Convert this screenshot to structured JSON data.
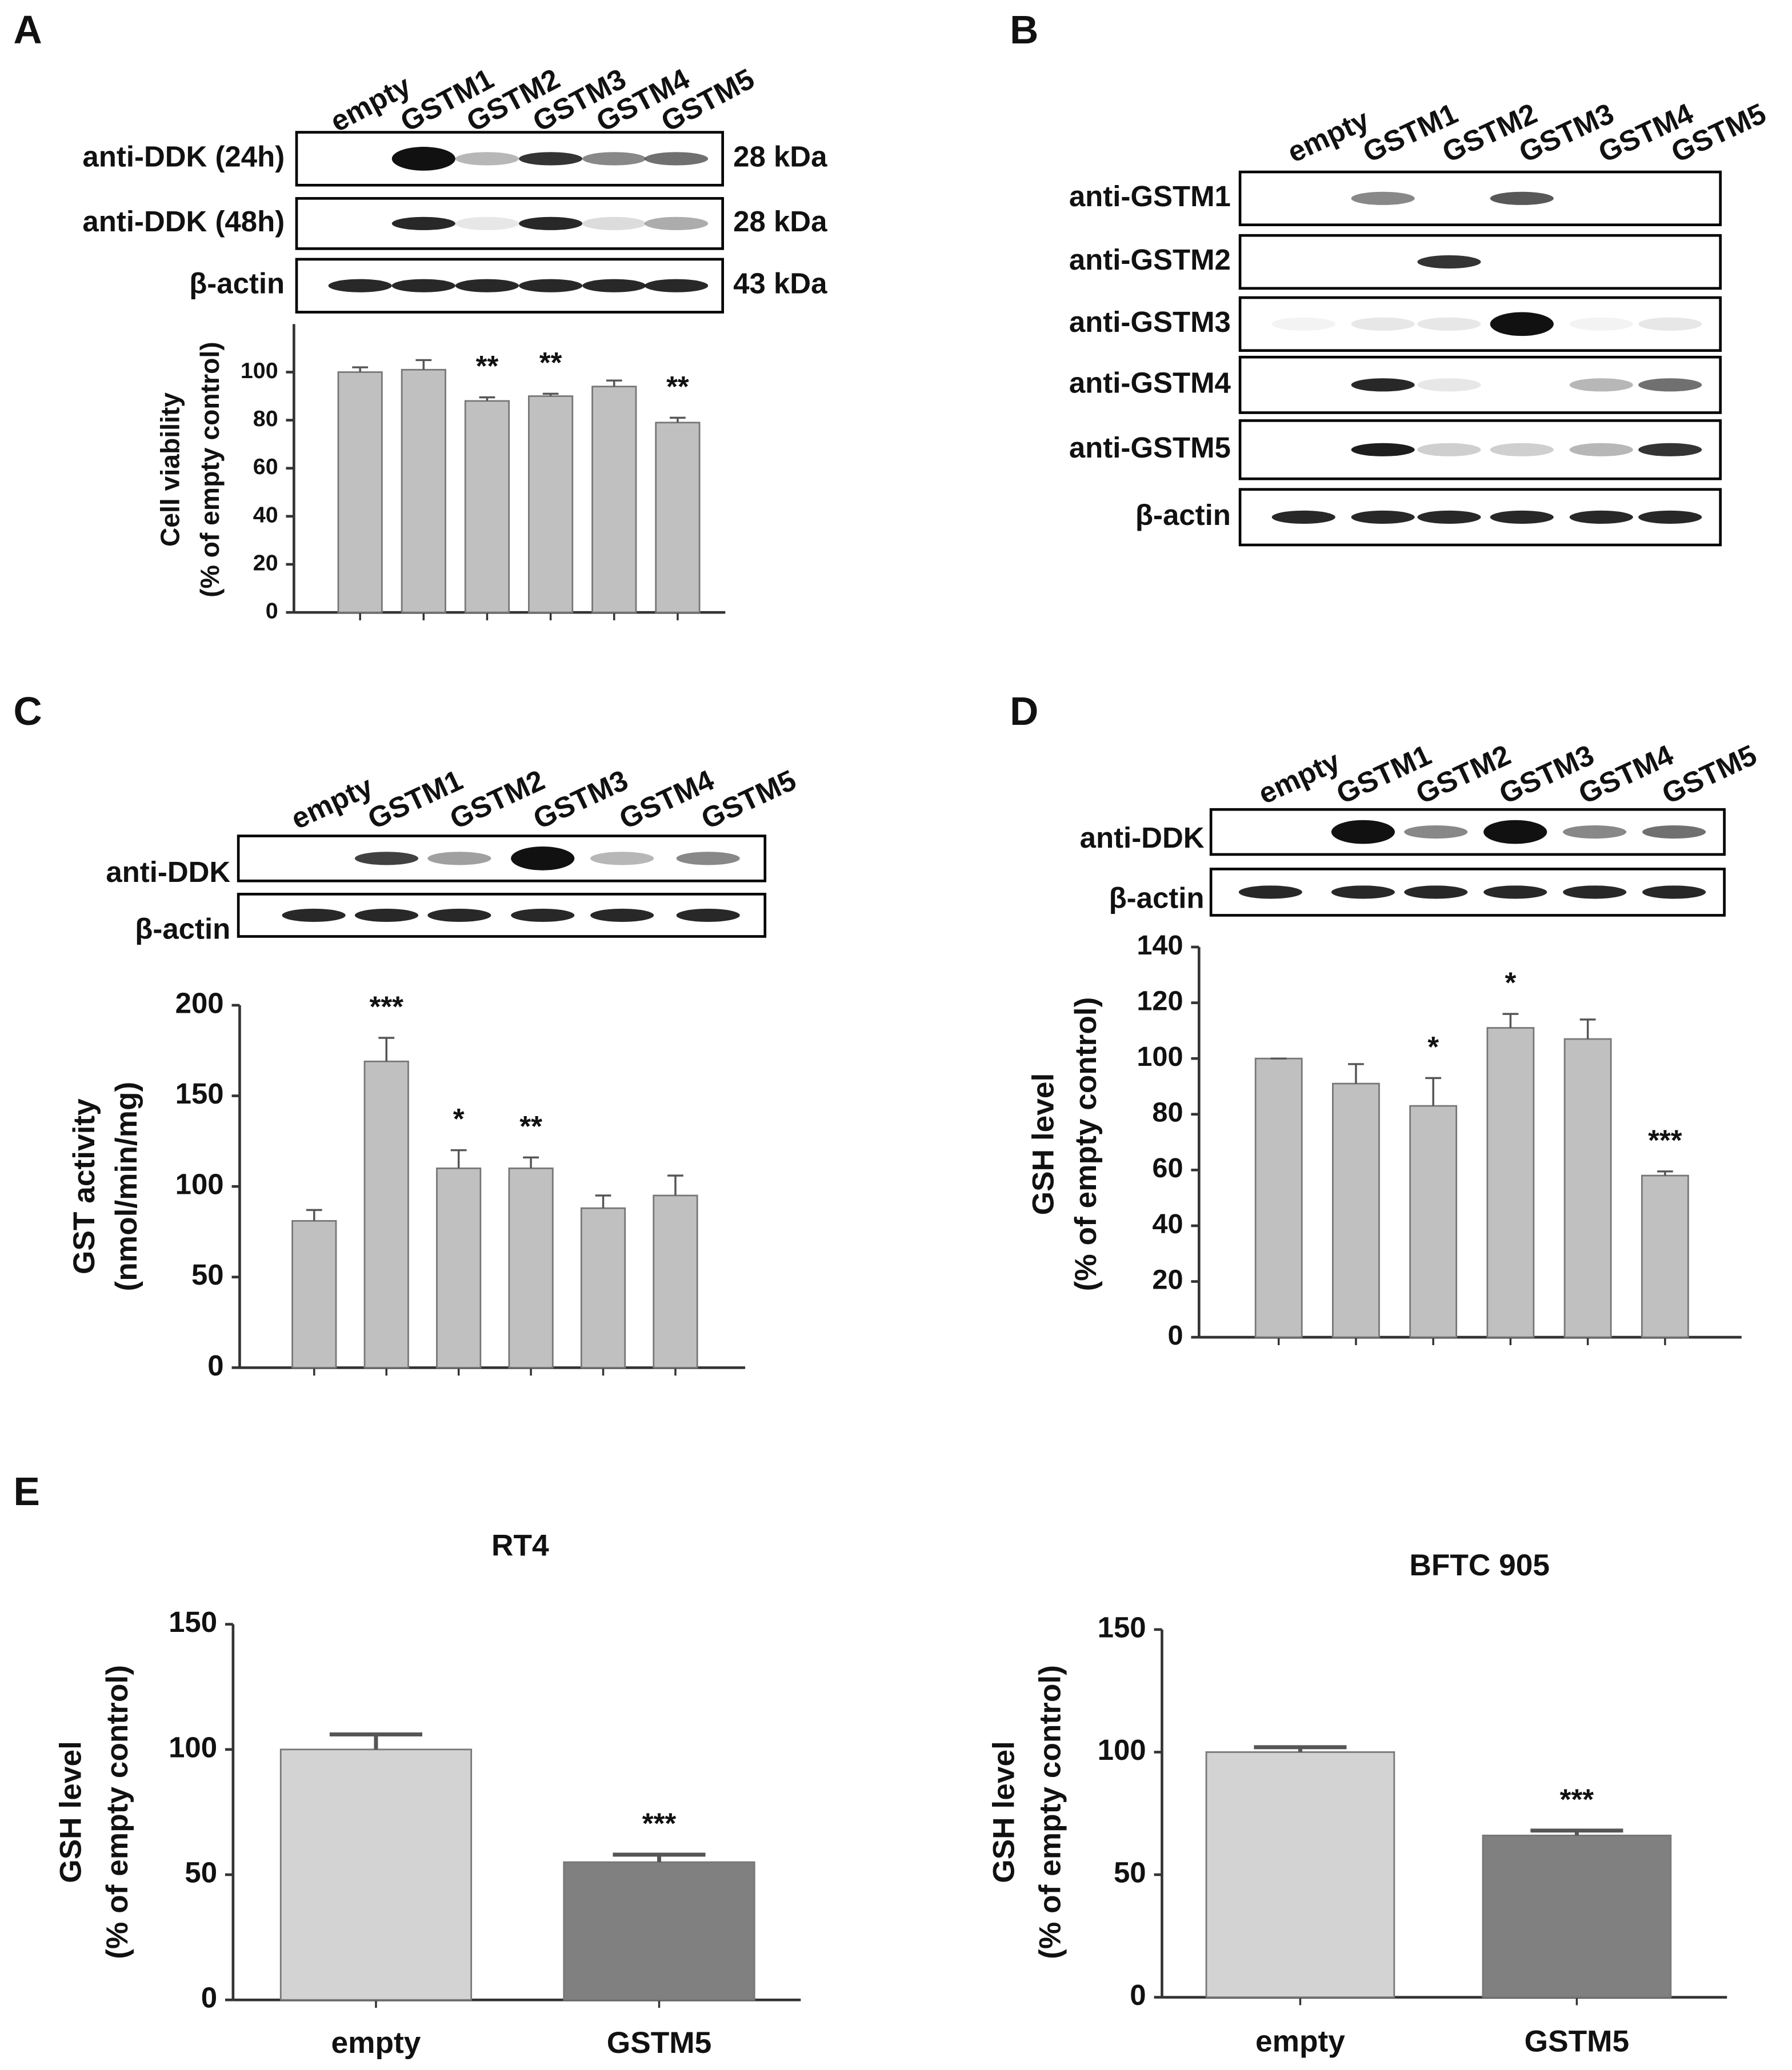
{
  "panels": [
    "A",
    "B",
    "C",
    "D",
    "E"
  ],
  "blots": [
    {
      "lanes": [
        "empty",
        "GSTM1",
        "GSTM2",
        "GSTM3",
        "GSTM4",
        "GSTM5"
      ],
      "rows": [
        {
          "label": "anti-DDK (24h)",
          "kda": "28 kDa"
        },
        {
          "label": "anti-DDK (48h)",
          "kda": "28 kDa"
        },
        {
          "label": "β-actin",
          "kda": "43 kDa"
        }
      ]
    },
    {
      "lanes": [
        "empty",
        "GSTM1",
        "GSTM2",
        "GSTM3",
        "GSTM4",
        "GSTM5"
      ],
      "rows": [
        {
          "label": "anti-GSTM1"
        },
        {
          "label": "anti-GSTM2"
        },
        {
          "label": "anti-GSTM3"
        },
        {
          "label": "anti-GSTM4"
        },
        {
          "label": "anti-GSTM5"
        },
        {
          "label": "β-actin"
        }
      ]
    },
    {
      "lanes": [
        "empty",
        "GSTM1",
        "GSTM2",
        "GSTM3",
        "GSTM4",
        "GSTM5"
      ],
      "rows": [
        {
          "label": "anti-DDK"
        },
        {
          "label": "β-actin"
        }
      ]
    },
    {
      "lanes": [
        "empty",
        "GSTM1",
        "GSTM2",
        "GSTM3",
        "GSTM4",
        "GSTM5"
      ],
      "rows": [
        {
          "label": "anti-DDK"
        },
        {
          "label": "β-actin"
        }
      ]
    }
  ],
  "chart_data": [
    {
      "type": "bar",
      "ylabel": [
        "Cell viability",
        "(% of empty control)"
      ],
      "categories": [
        null,
        null,
        null,
        null,
        null,
        null
      ],
      "values": [
        100,
        101,
        88,
        90,
        94,
        79
      ],
      "errors": [
        2,
        4,
        1.5,
        1,
        2.5,
        2
      ],
      "annotations": [
        null,
        null,
        "**",
        "**",
        null,
        "**"
      ],
      "color": "#c0c0c0",
      "ylim": [
        0,
        120
      ],
      "yticks": [
        0,
        20,
        40,
        60,
        80,
        100
      ]
    },
    {
      "type": "bar",
      "ylabel": [
        "GST activity",
        "(nmol/min/mg)"
      ],
      "categories": [
        null,
        null,
        null,
        null,
        null,
        null
      ],
      "values": [
        81,
        169,
        110,
        110,
        88,
        95
      ],
      "errors": [
        6,
        13,
        10,
        6,
        7,
        11
      ],
      "annotations": [
        null,
        "***",
        "*",
        "**",
        null,
        null
      ],
      "color": "#c0c0c0",
      "ylim": [
        0,
        200
      ],
      "yticks": [
        0,
        50,
        100,
        150,
        200
      ]
    },
    {
      "type": "bar",
      "ylabel": [
        "GSH level",
        "(% of empty control)"
      ],
      "categories": [
        null,
        null,
        null,
        null,
        null,
        null
      ],
      "values": [
        100,
        91,
        83,
        111,
        107,
        58
      ],
      "errors": [
        0,
        7,
        10,
        5,
        7,
        1.5
      ],
      "annotations": [
        null,
        null,
        "*",
        "*",
        null,
        "***"
      ],
      "color": "#c0c0c0",
      "ylim": [
        0,
        140
      ],
      "yticks": [
        0,
        20,
        40,
        60,
        80,
        100,
        120,
        140
      ]
    },
    {
      "type": "bar",
      "title": "RT4",
      "ylabel": [
        "GSH level",
        "(% of empty control)"
      ],
      "categories": [
        "empty",
        "GSTM5"
      ],
      "values": [
        100,
        55
      ],
      "errors": [
        6,
        3
      ],
      "annotations": [
        null,
        "***"
      ],
      "colors": [
        "#d3d3d3",
        "#808080"
      ],
      "ylim": [
        0,
        150
      ],
      "yticks": [
        0,
        50,
        100,
        150
      ]
    },
    {
      "type": "bar",
      "title": "BFTC 905",
      "ylabel": [
        "GSH level",
        "(% of empty control)"
      ],
      "categories": [
        "empty",
        "GSTM5"
      ],
      "values": [
        100,
        66
      ],
      "errors": [
        2,
        2
      ],
      "annotations": [
        null,
        "***"
      ],
      "colors": [
        "#d3d3d3",
        "#808080"
      ],
      "ylim": [
        0,
        150
      ],
      "yticks": [
        0,
        50,
        100,
        150
      ]
    }
  ]
}
